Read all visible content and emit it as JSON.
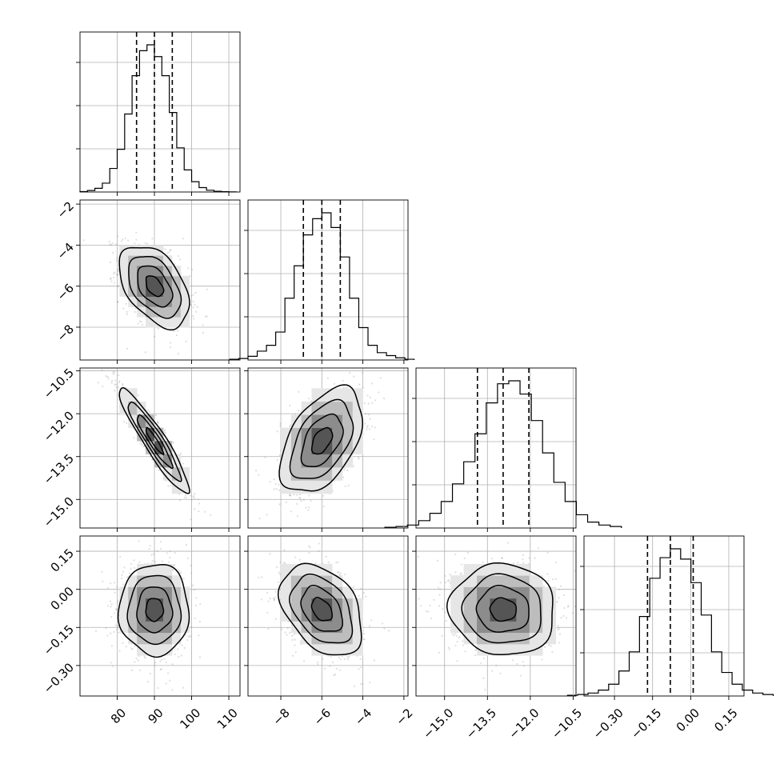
{
  "chart_data": {
    "type": "corner",
    "grid": true,
    "quantiles": [
      0.16,
      0.5,
      0.84
    ],
    "parameters": [
      {
        "name": "",
        "mean": 90.0,
        "std": 4.7,
        "range": [
          70,
          113
        ],
        "ticks": [
          80,
          90,
          100,
          110
        ],
        "tick_labels": [
          "80",
          "90",
          "100",
          "110"
        ],
        "quantile_values": [
          85.2,
          90.0,
          94.8
        ],
        "hist_bins": [
          70,
          72,
          74,
          76,
          78,
          80,
          82,
          84,
          86,
          88,
          90,
          92,
          94,
          96,
          98,
          100,
          102,
          104,
          106,
          108,
          110,
          112
        ],
        "hist_counts": [
          0.3,
          1.0,
          2.5,
          6,
          16,
          29,
          53,
          79,
          96,
          100,
          92,
          79,
          54,
          30,
          15,
          7,
          3,
          1.2,
          0.5,
          0.2,
          0.1
        ]
      },
      {
        "name": "",
        "mean": -6.0,
        "std": 1.0,
        "range": [
          -9.6,
          -1.8
        ],
        "ticks": [
          -8,
          -6,
          -4,
          -2
        ],
        "tick_labels": [
          "−8",
          "−6",
          "−4",
          "−2"
        ],
        "quantile_values": [
          -6.9,
          -6.0,
          -5.1
        ],
        "hist_counts": [
          0.5,
          1,
          2.5,
          6,
          10,
          19,
          42,
          64,
          85,
          96,
          100,
          90,
          70,
          42,
          22,
          10,
          5,
          3,
          1.5,
          0.5
        ]
      },
      {
        "name": "",
        "mean": -12.95,
        "std": 0.92,
        "range": [
          -16.0,
          -10.4
        ],
        "ticks": [
          -15.0,
          -13.5,
          -12.0,
          -10.5
        ],
        "tick_labels": [
          "−15.0",
          "−13.5",
          "−12.0",
          "−10.5"
        ],
        "quantile_values": [
          -13.85,
          -12.95,
          -12.05
        ],
        "hist_counts": [
          0.5,
          1,
          2,
          5,
          10,
          18,
          30,
          45,
          64,
          85,
          98,
          100,
          91,
          73,
          51,
          31,
          18,
          9,
          4,
          2,
          1
        ]
      },
      {
        "name": "",
        "mean": -0.08,
        "std": 0.09,
        "range": [
          -0.42,
          0.21
        ],
        "ticks": [
          -0.3,
          -0.15,
          0.0,
          0.15
        ],
        "tick_labels": [
          "−0.30",
          "−0.15",
          "0.00",
          "0.15"
        ],
        "quantile_values": [
          -0.17,
          -0.08,
          0.01
        ],
        "hist_counts": [
          0.5,
          1,
          2,
          4,
          8,
          17,
          30,
          54,
          80,
          94,
          100,
          93,
          77,
          55,
          30,
          16,
          8,
          4,
          2,
          1
        ]
      }
    ],
    "correlations": [
      [
        1.0,
        -0.45,
        -0.93,
        0.0
      ],
      [
        -0.45,
        1.0,
        0.48,
        -0.38
      ],
      [
        -0.93,
        0.48,
        1.0,
        -0.05
      ],
      [
        0.0,
        -0.38,
        -0.05,
        1.0
      ]
    ],
    "contour_levels_sigma": [
      0.5,
      1.0,
      1.5,
      2.0
    ],
    "colors": {
      "lines": "#000000",
      "points": "#8a8a8a",
      "grid": "#b0b0b0",
      "background": "#ffffff"
    }
  }
}
